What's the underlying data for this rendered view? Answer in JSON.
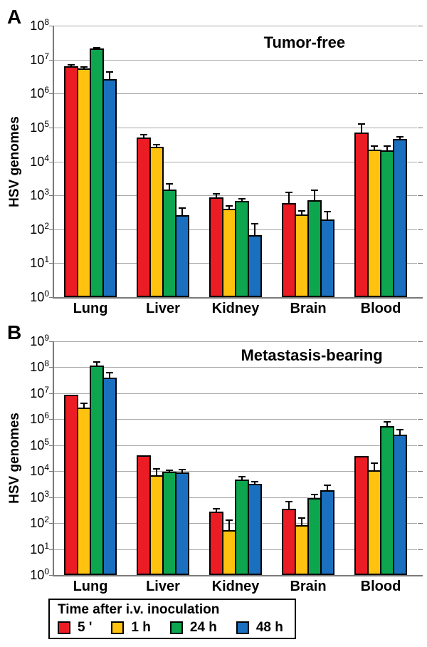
{
  "figure": {
    "panel_a_letter": "A",
    "panel_b_letter": "B"
  },
  "legend": {
    "title": "Time after i.v. inoculation",
    "items": [
      {
        "label": "5 '",
        "color": "#ec1c24"
      },
      {
        "label": "1 h",
        "color": "#ffc20e"
      },
      {
        "label": "24 h",
        "color": "#0da64f"
      },
      {
        "label": "48 h",
        "color": "#1b6fbf"
      }
    ]
  },
  "colors": {
    "series_5min": "#ec1c24",
    "series_1h": "#ffc20e",
    "series_24h": "#0da64f",
    "series_48h": "#1b6fbf",
    "gridline": "#a9a9a9",
    "axis": "#7a7a7a",
    "bar_outline": "#000000"
  },
  "chart_data": [
    {
      "type": "bar",
      "panel_label": "A",
      "title": "Tumor-free",
      "ylabel": "HSV genomes",
      "yscale": "log",
      "ylim": [
        1,
        100000000
      ],
      "y_tick_base": "10",
      "y_tick_exponents": [
        0,
        1,
        2,
        3,
        4,
        5,
        6,
        7,
        8
      ],
      "grid": true,
      "categories": [
        "Lung",
        "Liver",
        "Kidney",
        "Brain",
        "Blood"
      ],
      "series": [
        {
          "name": "5 '",
          "color": "#ec1c24",
          "values": [
            6400000.0,
            50000.0,
            890.0,
            600.0,
            70000.0
          ],
          "errors_top": [
            7200000.0,
            65000.0,
            1150.0,
            1300.0,
            135000.0
          ]
        },
        {
          "name": "1 h",
          "color": "#ffc20e",
          "values": [
            5600000.0,
            27000.0,
            410.0,
            270.0,
            22000.0
          ],
          "errors_top": [
            6500000.0,
            33000.0,
            520.0,
            360.0,
            29000.0
          ]
        },
        {
          "name": "24 h",
          "color": "#0da64f",
          "values": [
            21000000.0,
            1500.0,
            680.0,
            720.0,
            21000.0
          ],
          "errors_top": [
            24000000.0,
            2300.0,
            830.0,
            1450.0,
            29000.0
          ]
        },
        {
          "name": "48 h",
          "color": "#1b6fbf",
          "values": [
            2700000.0,
            260.0,
            68.0,
            190.0,
            45000.0
          ],
          "errors_top": [
            4600000.0,
            440.0,
            155.0,
            340.0,
            57000.0
          ]
        }
      ]
    },
    {
      "type": "bar",
      "panel_label": "B",
      "title": "Metastasis-bearing",
      "ylabel": "HSV genomes",
      "yscale": "log",
      "ylim": [
        1,
        1000000000
      ],
      "y_tick_base": "10",
      "y_tick_exponents": [
        0,
        1,
        2,
        3,
        4,
        5,
        6,
        7,
        8,
        9
      ],
      "grid": true,
      "categories": [
        "Lung",
        "Liver",
        "Kidney",
        "Brain",
        "Blood"
      ],
      "series": [
        {
          "name": "5 '",
          "color": "#ec1c24",
          "values": [
            9000000.0,
            40000.0,
            280.0,
            360.0,
            39000.0
          ],
          "errors_top": [
            9600000.0,
            44000.0,
            370.0,
            700.0,
            39000.0
          ]
        },
        {
          "name": "1 h",
          "color": "#ffc20e",
          "values": [
            2800000.0,
            7000.0,
            54.0,
            85.0,
            11000.0
          ],
          "errors_top": [
            4500000.0,
            13000.0,
            140.0,
            170.0,
            22000.0
          ]
        },
        {
          "name": "24 h",
          "color": "#0da64f",
          "values": [
            115000000.0,
            9600.0,
            4800.0,
            930.0,
            540000.0
          ],
          "errors_top": [
            170000000.0,
            11500.0,
            6600.0,
            1350.0,
            850000.0
          ]
        },
        {
          "name": "48 h",
          "color": "#1b6fbf",
          "values": [
            40000000.0,
            9000.0,
            3300.0,
            1800.0,
            250000.0
          ],
          "errors_top": [
            65000000.0,
            12500.0,
            4300.0,
            3000.0,
            430000.0
          ]
        }
      ]
    }
  ]
}
